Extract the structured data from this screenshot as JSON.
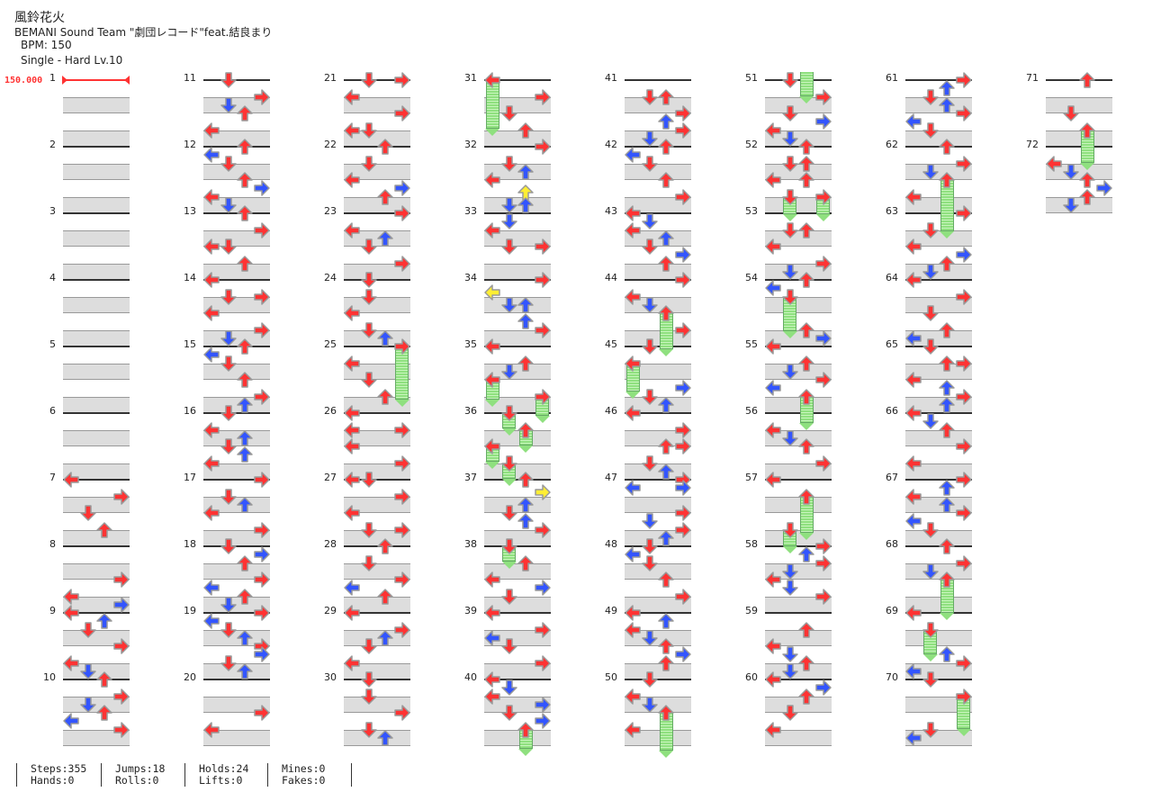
{
  "header": {
    "title": "風鈴花火",
    "artist": "BEMANI Sound Team \"劇団レコード\"feat.結良まり",
    "bpm": "BPM: 150",
    "difficulty": "Single - Hard  Lv.10"
  },
  "bpm_marker": "150.000",
  "colors": {
    "quarter": "#ff3333",
    "eighth": "#3355ff",
    "sixteenth": "#ffee33",
    "hold": "#8fe07f"
  },
  "footer": {
    "stats": [
      [
        "Steps:355",
        "Hands:0"
      ],
      [
        "Jumps:18",
        "Rolls:0"
      ],
      [
        "Holds:24",
        "Lifts:0"
      ],
      [
        "Mines:0",
        "Fakes:0"
      ]
    ]
  },
  "chart_data": {
    "type": "table",
    "measure_count": 72,
    "lanes": [
      "L",
      "D",
      "U",
      "R"
    ],
    "notes": {
      "7": [
        [
          0,
          "L"
        ],
        [
          1,
          "R"
        ],
        [
          2,
          "D"
        ],
        [
          3,
          "U"
        ]
      ],
      "8": [
        [
          2,
          "R"
        ],
        [
          3,
          "L"
        ],
        [
          3.5,
          "R"
        ]
      ],
      "9": [
        [
          0,
          "L"
        ],
        [
          0.5,
          "U"
        ],
        [
          1,
          "D"
        ],
        [
          2,
          "R"
        ],
        [
          3,
          "L"
        ],
        [
          3.5,
          "D"
        ]
      ],
      "10": [
        [
          0,
          "U"
        ],
        [
          1,
          "R"
        ],
        [
          1.5,
          "D"
        ],
        [
          2,
          "U"
        ],
        [
          2.5,
          "L"
        ],
        [
          3,
          "R"
        ]
      ],
      "11": [
        [
          0,
          "D"
        ],
        [
          1,
          "R"
        ],
        [
          1.5,
          "D"
        ],
        [
          2,
          "U"
        ],
        [
          3,
          "L"
        ]
      ],
      "12": [
        [
          0,
          "U"
        ],
        [
          0.5,
          "L"
        ],
        [
          1,
          "D"
        ],
        [
          2,
          "U"
        ],
        [
          2.5,
          "R"
        ],
        [
          3,
          "L"
        ],
        [
          3.5,
          "D"
        ]
      ],
      "13": [
        [
          0,
          "U"
        ],
        [
          1,
          "R"
        ],
        [
          2,
          "L"
        ],
        [
          2,
          "D"
        ],
        [
          3,
          "U"
        ]
      ],
      "14": [
        [
          0,
          "L"
        ],
        [
          1,
          "D"
        ],
        [
          1,
          "R"
        ],
        [
          2,
          "L"
        ],
        [
          3,
          "R"
        ],
        [
          3.5,
          "D"
        ]
      ],
      "15": [
        [
          0,
          "U"
        ],
        [
          0.5,
          "L"
        ],
        [
          1,
          "D"
        ],
        [
          2,
          "U"
        ],
        [
          3,
          "R"
        ],
        [
          3.5,
          "U"
        ]
      ],
      "16": [
        [
          0,
          "D"
        ],
        [
          1,
          "L"
        ],
        [
          1.5,
          "U"
        ],
        [
          2,
          "D"
        ],
        [
          2.5,
          "U"
        ],
        [
          3,
          "L"
        ]
      ],
      "17": [
        [
          0,
          "R"
        ],
        [
          1,
          "D"
        ],
        [
          1.5,
          "U"
        ],
        [
          2,
          "L"
        ],
        [
          3,
          "R"
        ]
      ],
      "18": [
        [
          0,
          "D"
        ],
        [
          0.5,
          "R"
        ],
        [
          1,
          "U"
        ],
        [
          2,
          "R"
        ],
        [
          2.5,
          "L"
        ],
        [
          3,
          "U"
        ],
        [
          3.5,
          "D"
        ]
      ],
      "19": [
        [
          0,
          "R"
        ],
        [
          0.5,
          "L"
        ],
        [
          1,
          "D"
        ],
        [
          1.5,
          "U"
        ],
        [
          2,
          "R"
        ],
        [
          2.5,
          "R"
        ],
        [
          3,
          "D"
        ],
        [
          3.5,
          "U"
        ]
      ],
      "20": [
        [
          2,
          "R"
        ],
        [
          3,
          "L"
        ]
      ],
      "21": [
        [
          0,
          "D"
        ],
        [
          0,
          "R"
        ],
        [
          1,
          "L"
        ],
        [
          2,
          "R"
        ],
        [
          3,
          "L"
        ],
        [
          3,
          "D"
        ]
      ],
      "22": [
        [
          0,
          "U"
        ],
        [
          1,
          "D"
        ],
        [
          2,
          "L"
        ],
        [
          2.5,
          "R"
        ],
        [
          3,
          "U"
        ]
      ],
      "23": [
        [
          0,
          "R"
        ],
        [
          1,
          "L"
        ],
        [
          1.5,
          "U"
        ],
        [
          2,
          "D"
        ],
        [
          3,
          "R"
        ]
      ],
      "24": [
        [
          0,
          "D"
        ],
        [
          1,
          "D"
        ],
        [
          2,
          "L"
        ],
        [
          3,
          "D"
        ],
        [
          3.5,
          "U"
        ]
      ],
      "25": [
        [
          0,
          "R",
          3.5
        ],
        [
          1,
          "L"
        ],
        [
          2,
          "D"
        ],
        [
          3,
          "U"
        ]
      ],
      "26": [
        [
          0,
          "L"
        ],
        [
          1,
          "L"
        ],
        [
          1,
          "R"
        ],
        [
          2,
          "L"
        ],
        [
          3,
          "R"
        ]
      ],
      "27": [
        [
          0,
          "L"
        ],
        [
          0,
          "D"
        ],
        [
          1,
          "R"
        ],
        [
          2,
          "L"
        ],
        [
          3,
          "D"
        ],
        [
          3,
          "R"
        ]
      ],
      "28": [
        [
          0,
          "U"
        ],
        [
          1,
          "D"
        ],
        [
          2,
          "R"
        ],
        [
          2.5,
          "L"
        ],
        [
          3,
          "U"
        ]
      ],
      "29": [
        [
          0,
          "L"
        ],
        [
          1,
          "R"
        ],
        [
          1.5,
          "U"
        ],
        [
          2,
          "D"
        ],
        [
          3,
          "L"
        ]
      ],
      "30": [
        [
          0,
          "D"
        ],
        [
          1,
          "D"
        ],
        [
          2,
          "R"
        ],
        [
          3,
          "D"
        ],
        [
          3.5,
          "U"
        ]
      ],
      "31": [
        [
          0,
          "L",
          3.25
        ],
        [
          1,
          "R"
        ],
        [
          2,
          "D"
        ],
        [
          3,
          "U"
        ]
      ],
      "32": [
        [
          0,
          "R"
        ],
        [
          1,
          "D"
        ],
        [
          1.5,
          "U"
        ],
        [
          2,
          "L"
        ],
        [
          2.75,
          "U"
        ],
        [
          3.5,
          "D"
        ],
        [
          3.5,
          "U"
        ]
      ],
      "33": [
        [
          0.5,
          "D"
        ],
        [
          1,
          "L"
        ],
        [
          2,
          "D"
        ],
        [
          2,
          "R"
        ]
      ],
      "34": [
        [
          0,
          "R"
        ],
        [
          0.75,
          "L"
        ],
        [
          1.5,
          "D"
        ],
        [
          1.5,
          "U"
        ],
        [
          2.5,
          "U"
        ],
        [
          3,
          "R"
        ]
      ],
      "35": [
        [
          0,
          "L"
        ],
        [
          1,
          "U"
        ],
        [
          1.5,
          "D"
        ],
        [
          2,
          "L",
          1.5
        ],
        [
          3,
          "R",
          1.5
        ]
      ],
      "36": [
        [
          0,
          "D",
          1.25
        ],
        [
          1,
          "U",
          1.25
        ],
        [
          2,
          "L",
          1.25
        ],
        [
          3,
          "D",
          1.25
        ]
      ],
      "37": [
        [
          0,
          "U"
        ],
        [
          0.75,
          "R"
        ],
        [
          1.5,
          "U"
        ],
        [
          2,
          "D"
        ],
        [
          2.5,
          "U"
        ],
        [
          3,
          "R"
        ]
      ],
      "38": [
        [
          0,
          "D",
          1.25
        ],
        [
          1,
          "U"
        ],
        [
          2,
          "L"
        ],
        [
          2.5,
          "R"
        ],
        [
          3,
          "D"
        ]
      ],
      "39": [
        [
          0,
          "L"
        ],
        [
          1,
          "R"
        ],
        [
          1.5,
          "L"
        ],
        [
          2,
          "D"
        ],
        [
          3,
          "R"
        ]
      ],
      "40": [
        [
          0,
          "L"
        ],
        [
          0.5,
          "D"
        ],
        [
          1,
          "L"
        ],
        [
          1.5,
          "R"
        ],
        [
          2,
          "D"
        ],
        [
          2.5,
          "R"
        ],
        [
          3,
          "U",
          1.5
        ]
      ],
      "41": [
        [
          1,
          "D"
        ],
        [
          1,
          "U"
        ],
        [
          2,
          "R"
        ],
        [
          2.5,
          "U"
        ],
        [
          3,
          "R"
        ],
        [
          3.5,
          "D"
        ]
      ],
      "42": [
        [
          0,
          "U"
        ],
        [
          0.5,
          "L"
        ],
        [
          1,
          "D"
        ],
        [
          2,
          "U"
        ],
        [
          3,
          "R"
        ]
      ],
      "43": [
        [
          0,
          "L"
        ],
        [
          0.5,
          "D"
        ],
        [
          1,
          "L"
        ],
        [
          1.5,
          "U"
        ],
        [
          2,
          "D"
        ],
        [
          2.5,
          "R"
        ],
        [
          3,
          "U"
        ]
      ],
      "44": [
        [
          0,
          "R"
        ],
        [
          1,
          "L"
        ],
        [
          1.5,
          "D"
        ],
        [
          2,
          "U",
          2.5
        ],
        [
          3,
          "R"
        ]
      ],
      "45": [
        [
          0,
          "D"
        ],
        [
          1,
          "L",
          2
        ],
        [
          2.5,
          "R"
        ],
        [
          3,
          "D"
        ],
        [
          3.5,
          "U"
        ]
      ],
      "46": [
        [
          0,
          "L"
        ],
        [
          1,
          "R"
        ],
        [
          2,
          "U"
        ],
        [
          2,
          "R"
        ],
        [
          3,
          "D"
        ],
        [
          3.5,
          "U"
        ]
      ],
      "47": [
        [
          0,
          "R"
        ],
        [
          0.5,
          "L"
        ],
        [
          0.5,
          "R"
        ],
        [
          2,
          "R"
        ],
        [
          2.5,
          "D"
        ],
        [
          3,
          "R"
        ],
        [
          3.5,
          "U"
        ]
      ],
      "48": [
        [
          0,
          "D"
        ],
        [
          0.5,
          "L"
        ],
        [
          1,
          "D"
        ],
        [
          2,
          "U"
        ],
        [
          3,
          "R"
        ]
      ],
      "49": [
        [
          0,
          "L"
        ],
        [
          0.5,
          "U"
        ],
        [
          1,
          "L"
        ],
        [
          1.5,
          "D"
        ],
        [
          2,
          "U"
        ],
        [
          2.5,
          "R"
        ],
        [
          3,
          "U"
        ]
      ],
      "50": [
        [
          0,
          "D"
        ],
        [
          1,
          "L"
        ],
        [
          1.5,
          "D"
        ],
        [
          2,
          "U",
          2.6
        ],
        [
          3,
          "L"
        ]
      ],
      "51": [
        [
          0,
          "U",
          1.3,
          "tail"
        ],
        [
          0,
          "D"
        ],
        [
          1,
          "R"
        ],
        [
          2,
          "D"
        ],
        [
          2.5,
          "R"
        ],
        [
          3,
          "L"
        ],
        [
          3.5,
          "D"
        ]
      ],
      "52": [
        [
          0,
          "U"
        ],
        [
          1,
          "D"
        ],
        [
          1,
          "U"
        ],
        [
          2,
          "L"
        ],
        [
          2,
          "U"
        ],
        [
          3,
          "D",
          1.4
        ],
        [
          3,
          "R",
          1.4
        ]
      ],
      "53": [
        [
          1,
          "D"
        ],
        [
          1,
          "U"
        ],
        [
          2,
          "L"
        ],
        [
          3,
          "R"
        ],
        [
          3.5,
          "D"
        ]
      ],
      "54": [
        [
          0,
          "U"
        ],
        [
          0.5,
          "L"
        ],
        [
          1,
          "D",
          2.4
        ],
        [
          3,
          "U"
        ],
        [
          3.5,
          "R"
        ]
      ],
      "55": [
        [
          0,
          "L"
        ],
        [
          1,
          "U"
        ],
        [
          1.5,
          "D"
        ],
        [
          2,
          "R"
        ],
        [
          2.5,
          "L"
        ],
        [
          3,
          "U",
          1.9
        ]
      ],
      "56": [
        [
          1,
          "L"
        ],
        [
          1.5,
          "D"
        ],
        [
          2,
          "U"
        ],
        [
          3,
          "R"
        ]
      ],
      "57": [
        [
          0,
          "L"
        ],
        [
          1,
          "U",
          2.5
        ],
        [
          3,
          "D",
          1.3
        ]
      ],
      "58": [
        [
          0,
          "R"
        ],
        [
          0.5,
          "U"
        ],
        [
          1,
          "R"
        ],
        [
          1.5,
          "D"
        ],
        [
          2,
          "L"
        ],
        [
          2.5,
          "D"
        ],
        [
          3,
          "R"
        ]
      ],
      "59": [
        [
          1,
          "U"
        ],
        [
          2,
          "L"
        ],
        [
          2.5,
          "D"
        ],
        [
          3,
          "U"
        ],
        [
          3.5,
          "D"
        ]
      ],
      "60": [
        [
          0,
          "L"
        ],
        [
          0.5,
          "R"
        ],
        [
          1,
          "U"
        ],
        [
          2,
          "D"
        ],
        [
          3,
          "L"
        ]
      ],
      "61": [
        [
          0,
          "R"
        ],
        [
          0.5,
          "U"
        ],
        [
          1,
          "D"
        ],
        [
          1.5,
          "U"
        ],
        [
          2,
          "R"
        ],
        [
          2.5,
          "L"
        ],
        [
          3,
          "D"
        ]
      ],
      "62": [
        [
          0,
          "U"
        ],
        [
          1,
          "R"
        ],
        [
          1.5,
          "D"
        ],
        [
          2,
          "U",
          3.4
        ],
        [
          3,
          "L"
        ]
      ],
      "63": [
        [
          0,
          "R"
        ],
        [
          1,
          "D"
        ],
        [
          2,
          "L"
        ],
        [
          2.5,
          "R"
        ],
        [
          3,
          "U"
        ],
        [
          3.5,
          "D"
        ]
      ],
      "64": [
        [
          0,
          "L"
        ],
        [
          1,
          "R"
        ],
        [
          2,
          "D"
        ],
        [
          3,
          "U"
        ],
        [
          3.5,
          "L"
        ]
      ],
      "65": [
        [
          0,
          "D"
        ],
        [
          1,
          "U"
        ],
        [
          1,
          "R"
        ],
        [
          2,
          "L"
        ],
        [
          2.5,
          "U"
        ],
        [
          3,
          "R"
        ],
        [
          3.5,
          "U"
        ]
      ],
      "66": [
        [
          0,
          "L"
        ],
        [
          0.5,
          "D"
        ],
        [
          1,
          "U"
        ],
        [
          2,
          "R"
        ],
        [
          3,
          "L"
        ]
      ],
      "67": [
        [
          0,
          "R"
        ],
        [
          0.5,
          "U"
        ],
        [
          1,
          "L"
        ],
        [
          1.5,
          "U"
        ],
        [
          2,
          "R"
        ],
        [
          2.5,
          "L"
        ],
        [
          3,
          "D"
        ]
      ],
      "68": [
        [
          0,
          "U"
        ],
        [
          1,
          "R"
        ],
        [
          1.5,
          "D"
        ],
        [
          2,
          "U",
          2.3
        ]
      ],
      "69": [
        [
          0,
          "L"
        ],
        [
          1,
          "D",
          1.8
        ],
        [
          2.5,
          "U"
        ],
        [
          3,
          "R"
        ],
        [
          3.5,
          "L"
        ]
      ],
      "70": [
        [
          0,
          "D"
        ],
        [
          1,
          "R",
          2.3
        ],
        [
          3,
          "D"
        ],
        [
          3.5,
          "L"
        ]
      ],
      "71": [
        [
          0,
          "U"
        ],
        [
          2,
          "D"
        ],
        [
          3,
          "U",
          2.3
        ]
      ],
      "72": [
        [
          1,
          "L"
        ],
        [
          1.5,
          "D"
        ],
        [
          2,
          "U"
        ],
        [
          2.5,
          "R"
        ],
        [
          3,
          "U"
        ],
        [
          3.5,
          "D"
        ]
      ]
    }
  }
}
